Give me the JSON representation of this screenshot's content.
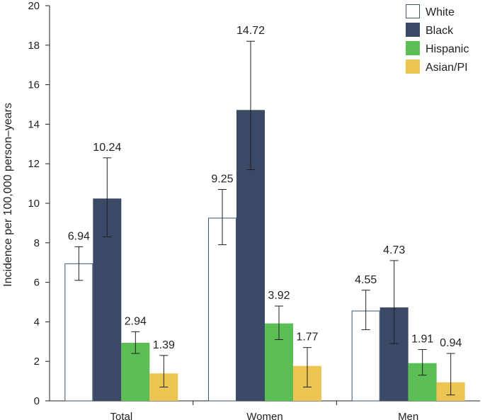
{
  "chart_data": {
    "type": "bar",
    "title": "",
    "xlabel": "",
    "ylabel": "Incidence per 100,000 person–years",
    "ylim": [
      0,
      20
    ],
    "yticks": [
      0,
      2,
      4,
      6,
      8,
      10,
      12,
      14,
      16,
      18,
      20
    ],
    "categories": [
      "Total",
      "Women",
      "Men"
    ],
    "legend_position": "top-right",
    "series": [
      {
        "name": "White",
        "color": "#ffffff",
        "stroke": "#3d5370",
        "values": [
          6.94,
          9.25,
          4.55
        ],
        "ci_low": [
          6.1,
          7.9,
          3.6
        ],
        "ci_high": [
          7.8,
          10.7,
          5.6
        ]
      },
      {
        "name": "Black",
        "color": "#3a4a66",
        "stroke": "#3a4a66",
        "values": [
          10.24,
          14.72,
          4.73
        ],
        "ci_low": [
          8.3,
          11.7,
          2.9
        ],
        "ci_high": [
          12.3,
          18.2,
          7.1
        ]
      },
      {
        "name": "Hispanic",
        "color": "#5cbf55",
        "stroke": "#5cbf55",
        "values": [
          2.94,
          3.92,
          1.91
        ],
        "ci_low": [
          2.4,
          3.1,
          1.3
        ],
        "ci_high": [
          3.5,
          4.8,
          2.6
        ]
      },
      {
        "name": "Asian/PI",
        "color": "#ecc552",
        "stroke": "#ecc552",
        "values": [
          1.39,
          1.77,
          0.94
        ],
        "ci_low": [
          0.7,
          0.7,
          0.3
        ],
        "ci_high": [
          2.3,
          2.7,
          2.4
        ]
      }
    ]
  }
}
